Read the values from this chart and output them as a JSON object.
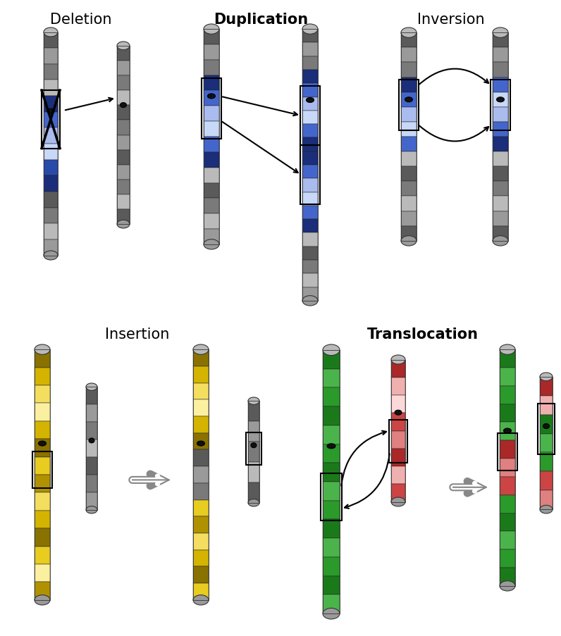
{
  "title_deletion": "Deletion",
  "title_duplication": "Duplication",
  "title_inversion": "Inversion",
  "title_insertion": "Insertion",
  "title_translocation": "Translocation",
  "bg_color": "#ffffff",
  "g1": "#3a3a3a",
  "g2": "#5a5a5a",
  "g3": "#7a7a7a",
  "g4": "#9a9a9a",
  "g5": "#bababa",
  "g6": "#cccccc",
  "b1": "#1a2e7a",
  "b2": "#2a4aaa",
  "b3": "#4466cc",
  "b4": "#8899dd",
  "b5": "#aabbee",
  "b6": "#c8d8f8",
  "y1": "#8a7200",
  "y2": "#b09200",
  "y3": "#d4b400",
  "y4": "#e8cc20",
  "y5": "#f4de60",
  "y6": "#faf0a0",
  "gr1": "#0a5a0a",
  "gr2": "#1a7a1a",
  "gr3": "#2a9a2a",
  "gr4": "#4ab44a",
  "r1": "#881818",
  "r2": "#aa2828",
  "r3": "#cc4444",
  "r4": "#e08080",
  "r5": "#f0b0b0",
  "r6": "#fcd8d8"
}
